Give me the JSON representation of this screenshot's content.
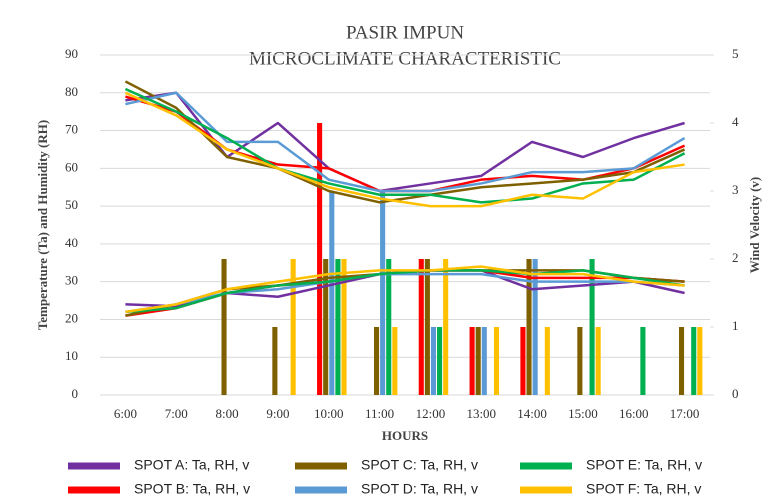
{
  "chart_data": {
    "type": "line-bar",
    "title": [
      "PASIR IMPUN",
      "MICROCLIMATE CHARACTERISTIC"
    ],
    "x_label": "HOURS",
    "y_label": "Temperature  (Ta)  and Humidity (RH)",
    "y2_label": "Wind Velocity (v)",
    "categories": [
      "6:00",
      "7:00",
      "8:00",
      "9:00",
      "10:00",
      "11:00",
      "12:00",
      "13:00",
      "14:00",
      "15:00",
      "16:00",
      "17:00"
    ],
    "ylim": [
      0,
      90
    ],
    "yticks": [
      0,
      10,
      20,
      30,
      40,
      50,
      60,
      70,
      80,
      90
    ],
    "y2lim": [
      0,
      5
    ],
    "y2ticks": [
      0,
      1,
      2,
      3,
      4,
      5
    ],
    "legend": "bottom",
    "series": [
      {
        "name": "SPOT A: Ta, RH, v",
        "color": "#7030a0",
        "ta": [
          24,
          23.5,
          27,
          26,
          29,
          32,
          33,
          33,
          28,
          29,
          30,
          27
        ],
        "rh": [
          78,
          80,
          63,
          72,
          60,
          54,
          56,
          58,
          67,
          63,
          68,
          72
        ],
        "v": [
          0,
          0,
          0,
          0,
          0,
          0,
          0,
          0,
          0,
          0,
          0,
          0
        ],
        "axis": "y2"
      },
      {
        "name": "SPOT B: Ta, RH, v",
        "color": "#ff0000",
        "ta": [
          21,
          23,
          27,
          29,
          30,
          32,
          33,
          33,
          31,
          31,
          31,
          30
        ],
        "rh": [
          79,
          75,
          65,
          61,
          60,
          54,
          54,
          57,
          58,
          57,
          60,
          66
        ],
        "v": [
          0,
          0,
          0,
          0,
          4,
          0,
          2,
          1,
          1,
          0,
          0,
          0
        ],
        "axis": "y2"
      },
      {
        "name": "SPOT C: Ta, RH, v",
        "color": "#7f6000",
        "ta": [
          21,
          24,
          28,
          29,
          31,
          32,
          33,
          33,
          33,
          33,
          31,
          30
        ],
        "rh": [
          83,
          76,
          63,
          60,
          54,
          51,
          53,
          55,
          56,
          57,
          59,
          65
        ],
        "v": [
          0,
          0,
          2,
          1,
          2,
          1,
          2,
          1,
          2,
          1,
          0,
          1
        ],
        "axis": "y2"
      },
      {
        "name": "SPOT D: Ta, RH, v",
        "color": "#5b9bd5",
        "ta": [
          22,
          24,
          27,
          28,
          30,
          32,
          32,
          32,
          30,
          30,
          30,
          29
        ],
        "rh": [
          77,
          80,
          67,
          67,
          57,
          54,
          54,
          56,
          59,
          59,
          60,
          68
        ],
        "v": [
          0,
          0,
          0,
          0,
          3,
          3,
          1,
          1,
          2,
          0,
          0,
          0
        ],
        "axis": "y2"
      },
      {
        "name": "SPOT E: Ta, RH, v",
        "color": "#00b050",
        "ta": [
          22,
          23,
          27,
          29,
          30,
          32,
          33,
          33,
          32,
          33,
          31,
          29
        ],
        "rh": [
          81,
          75,
          68,
          60,
          56,
          53,
          53,
          51,
          52,
          56,
          57,
          64
        ],
        "v": [
          0,
          0,
          0,
          0,
          2,
          2,
          1,
          0,
          0,
          2,
          1,
          1
        ],
        "axis": "y2"
      },
      {
        "name": "SPOT F: Ta, RH, v",
        "color": "#ffc000",
        "ta": [
          22,
          24,
          28,
          30,
          32,
          33,
          33,
          34,
          32,
          32,
          30,
          29
        ],
        "rh": [
          80,
          74,
          65,
          60,
          55,
          52,
          50,
          50,
          53,
          52,
          59,
          61
        ],
        "v": [
          0,
          0,
          0,
          2,
          2,
          1,
          2,
          1,
          1,
          1,
          0,
          1
        ],
        "axis": "y2"
      }
    ]
  }
}
